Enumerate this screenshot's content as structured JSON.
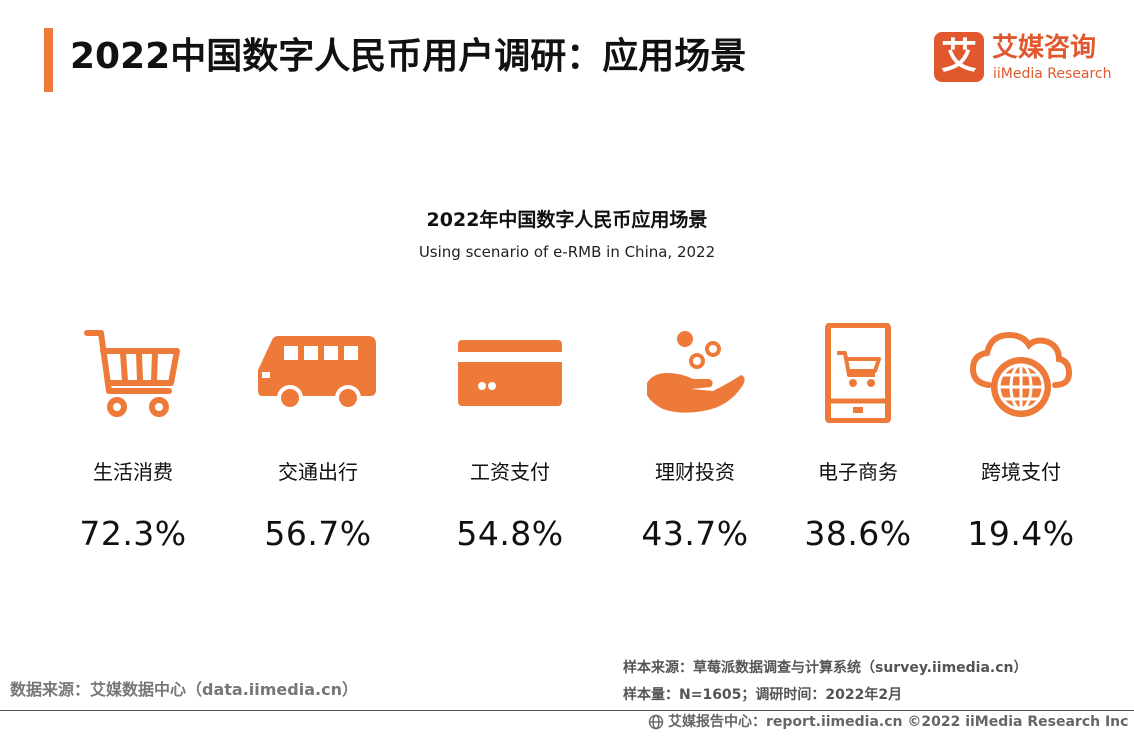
{
  "header": {
    "title": "2022中国数字人民币用户调研：应用场景",
    "logo_mark": "艾",
    "logo_cn": "艾媒咨询",
    "logo_en": "iiMedia Research"
  },
  "chart_data": {
    "type": "table",
    "title": "2022年中国数字人民币应用场景",
    "subtitle": "Using scenario of e-RMB in China, 2022",
    "categories": [
      "生活消费",
      "交通出行",
      "工资支付",
      "理财投资",
      "电子商务",
      "跨境支付"
    ],
    "values": [
      72.3,
      56.7,
      54.8,
      43.7,
      38.6,
      19.4
    ],
    "value_labels": [
      "72.3%",
      "56.7%",
      "54.8%",
      "43.7%",
      "38.6%",
      "19.4%"
    ],
    "icons": [
      "shopping-cart-icon",
      "bus-icon",
      "credit-card-icon",
      "hand-coins-icon",
      "phone-cart-icon",
      "cloud-globe-icon"
    ],
    "accent_color": "#ee7a3a"
  },
  "footer": {
    "source_left": "数据来源：艾媒数据中心（data.iimedia.cn）",
    "sample_source": "样本来源：草莓派数据调查与计算系统（survey.iimedia.cn）",
    "sample_size": "样本量：N=1605；调研时间：2022年2月",
    "copyright": "艾媒报告中心：report.iimedia.cn  ©2022 iiMedia Research Inc"
  }
}
